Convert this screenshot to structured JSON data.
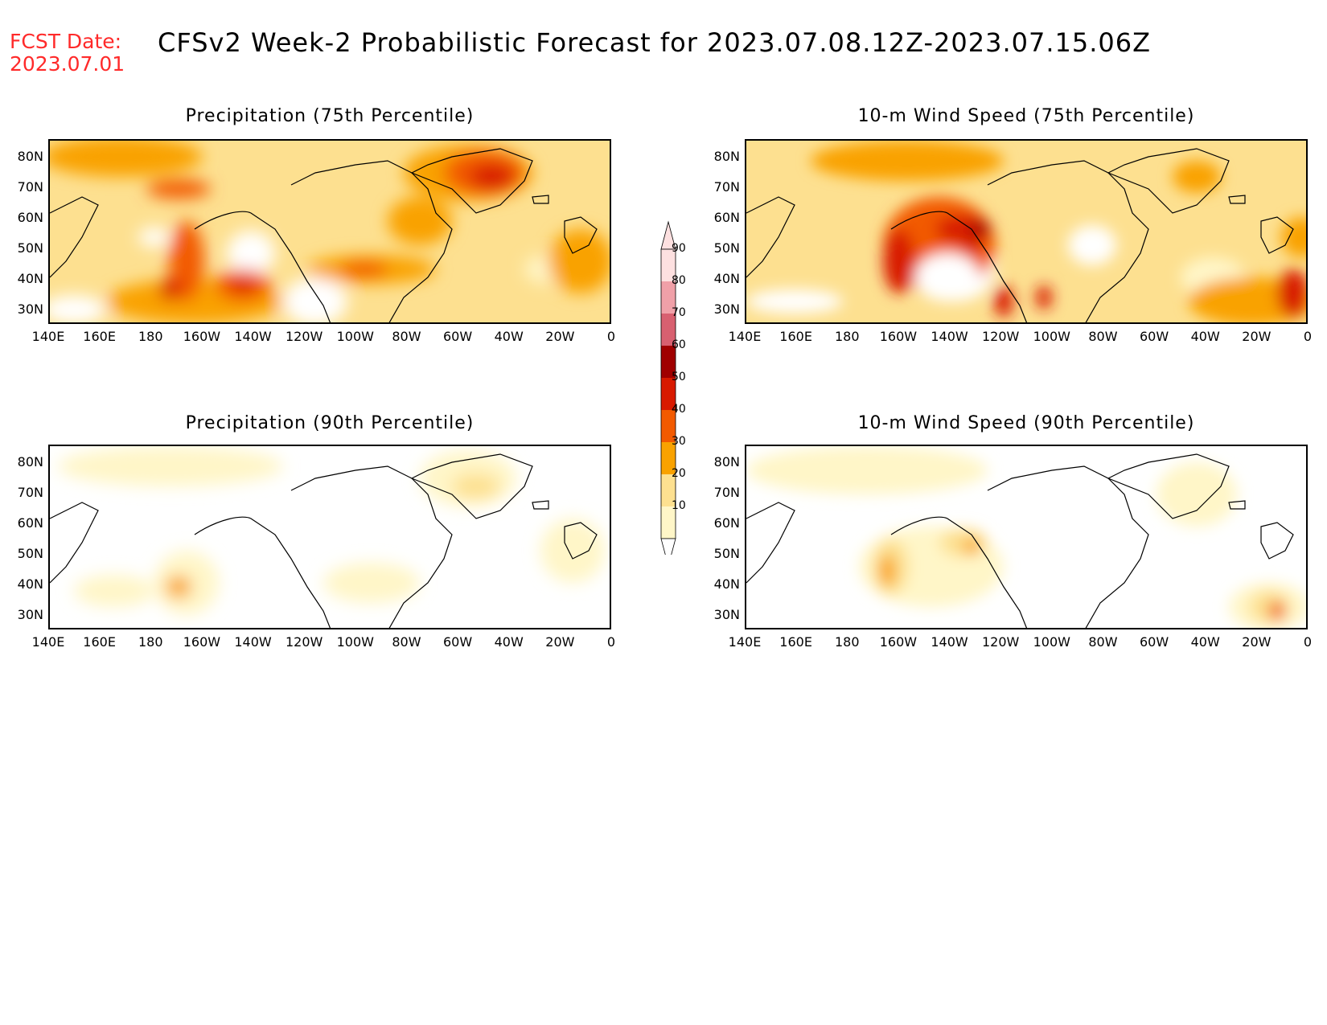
{
  "header": {
    "fcst_label": "FCST Date:",
    "fcst_date": "2023.07.01",
    "title": "CFSv2 Week-2 Probabilistic Forecast for 2023.07.08.12Z-2023.07.15.06Z"
  },
  "panels": [
    {
      "id": "precip-75",
      "title": "Precipitation (75th Percentile)"
    },
    {
      "id": "wind-75",
      "title": "10-m Wind Speed (75th Percentile)"
    },
    {
      "id": "precip-90",
      "title": "Precipitation (90th Percentile)"
    },
    {
      "id": "wind-90",
      "title": "10-m Wind Speed (90th Percentile)"
    }
  ],
  "axes": {
    "lat_labels": [
      "80N",
      "70N",
      "60N",
      "50N",
      "40N",
      "30N"
    ],
    "lon_labels": [
      "140E",
      "160E",
      "180",
      "160W",
      "140W",
      "120W",
      "100W",
      "80W",
      "60W",
      "40W",
      "20W",
      "0"
    ]
  },
  "colorbar": {
    "labels": [
      "90",
      "80",
      "70",
      "60",
      "50",
      "40",
      "30",
      "20",
      "10"
    ],
    "colors": [
      "#fde0e0",
      "#f0a0a8",
      "#d86070",
      "#a00000",
      "#d81a00",
      "#f25a00",
      "#f9a200",
      "#fde090",
      "#fff6c8"
    ]
  }
}
